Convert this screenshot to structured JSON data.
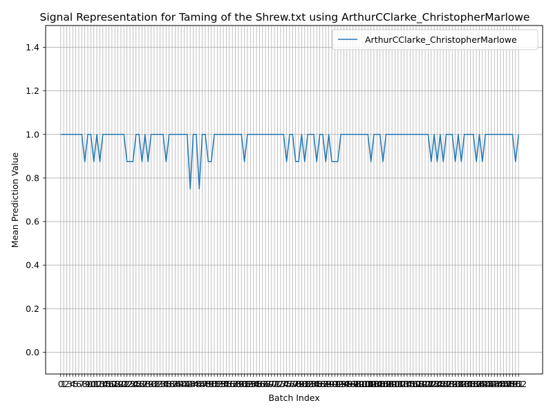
{
  "chart_data": {
    "type": "line",
    "title": "Signal Representation for Taming of the Shrew.txt using ArthurCClarke_ChristopherMarlowe",
    "xlabel": "Batch Index",
    "ylabel": "Mean Prediction Value",
    "xlim": [
      -5,
      160
    ],
    "ylim": [
      -0.1,
      1.5
    ],
    "yticks": [
      "0.0",
      "0.2",
      "0.4",
      "0.6",
      "0.8",
      "1.0",
      "1.2",
      "1.4"
    ],
    "grid": true,
    "legend_position": "top-right",
    "line_color": "#1f77b4",
    "series": [
      {
        "name": "ArthurCClarke_ChristopherMarlowe",
        "x_start": 0,
        "values": [
          1,
          1,
          1,
          1,
          1,
          1,
          1,
          1,
          0.875,
          1,
          1,
          0.875,
          1,
          0.875,
          1,
          1,
          1,
          1,
          1,
          1,
          1,
          1,
          0.875,
          0.875,
          0.875,
          1,
          1,
          0.875,
          1,
          0.875,
          1,
          1,
          1,
          1,
          1,
          0.875,
          1,
          1,
          1,
          1,
          1,
          1,
          1,
          0.75,
          1,
          1,
          0.75,
          1,
          1,
          0.875,
          0.875,
          1,
          1,
          1,
          1,
          1,
          1,
          1,
          1,
          1,
          1,
          0.875,
          1,
          1,
          1,
          1,
          1,
          1,
          1,
          1,
          1,
          1,
          1,
          1,
          1,
          0.875,
          1,
          1,
          0.875,
          0.875,
          1,
          0.875,
          1,
          1,
          1,
          0.875,
          1,
          1,
          0.875,
          1,
          0.875,
          0.875,
          0.875,
          1,
          1,
          1,
          1,
          1,
          1,
          1,
          1,
          1,
          1,
          0.875,
          1,
          1,
          1,
          0.875,
          1,
          1,
          1,
          1,
          1,
          1,
          1,
          1,
          1,
          1,
          1,
          1,
          1,
          1,
          1,
          0.875,
          1,
          0.875,
          1,
          0.875,
          1,
          1,
          1,
          0.875,
          1,
          0.875,
          1,
          1,
          1,
          1,
          0.875,
          1,
          0.875,
          1,
          1,
          1,
          1,
          1,
          1,
          1,
          1,
          1,
          1,
          0.875,
          1
        ]
      }
    ]
  }
}
